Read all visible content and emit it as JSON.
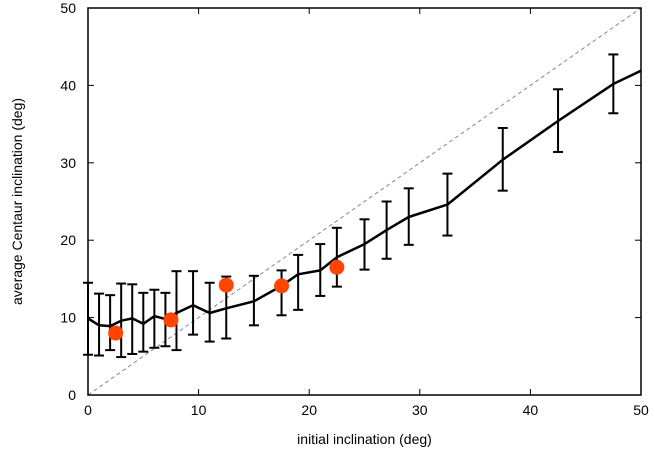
{
  "chart_data": {
    "type": "line",
    "xlabel": "initial inclination (deg)",
    "ylabel": "average Centaur inclination (deg)",
    "xlim": [
      0,
      50
    ],
    "ylim": [
      0,
      50
    ],
    "xticks": [
      "0",
      "10",
      "20",
      "30",
      "40",
      "50"
    ],
    "yticks": [
      "0",
      "10",
      "20",
      "30",
      "40",
      "50"
    ],
    "grid": false,
    "legend": "none",
    "series": [
      {
        "kind": "line-errorbars",
        "color": "#000000",
        "points": [
          {
            "x": 0,
            "y": 9.9,
            "ylo": 5.2,
            "yhi": 14.5
          },
          {
            "x": 1,
            "y": 9.0,
            "ylo": 5.1,
            "yhi": 13.1
          },
          {
            "x": 2,
            "y": 8.9,
            "ylo": 5.8,
            "yhi": 12.9
          },
          {
            "x": 3,
            "y": 9.6,
            "ylo": 4.9,
            "yhi": 14.4
          },
          {
            "x": 4,
            "y": 9.9,
            "ylo": 5.3,
            "yhi": 14.3
          },
          {
            "x": 5,
            "y": 9.2,
            "ylo": 5.6,
            "yhi": 13.2
          },
          {
            "x": 6,
            "y": 10.2,
            "ylo": 6.1,
            "yhi": 13.6
          },
          {
            "x": 7,
            "y": 9.8,
            "ylo": 6.3,
            "yhi": 13.2
          },
          {
            "x": 8,
            "y": 10.6,
            "ylo": 5.8,
            "yhi": 16.0
          },
          {
            "x": 9.5,
            "y": 11.6,
            "ylo": 7.8,
            "yhi": 16.0
          },
          {
            "x": 11,
            "y": 10.6,
            "ylo": 6.9,
            "yhi": 14.5
          },
          {
            "x": 12.5,
            "y": 11.2,
            "ylo": 7.3,
            "yhi": 15.3
          },
          {
            "x": 15,
            "y": 12.1,
            "ylo": 9.0,
            "yhi": 15.4
          },
          {
            "x": 17.5,
            "y": 14.1,
            "ylo": 10.3,
            "yhi": 16.1
          },
          {
            "x": 19,
            "y": 15.6,
            "ylo": 11.0,
            "yhi": 18.1
          },
          {
            "x": 21,
            "y": 16.1,
            "ylo": 12.8,
            "yhi": 19.5
          },
          {
            "x": 22.5,
            "y": 17.8,
            "ylo": 14.0,
            "yhi": 21.6
          },
          {
            "x": 25,
            "y": 19.5,
            "ylo": 16.2,
            "yhi": 22.7
          },
          {
            "x": 27,
            "y": 21.3,
            "ylo": 17.6,
            "yhi": 25.0
          },
          {
            "x": 29,
            "y": 23.0,
            "ylo": 19.4,
            "yhi": 26.7
          },
          {
            "x": 32.5,
            "y": 24.6,
            "ylo": 20.6,
            "yhi": 28.6
          },
          {
            "x": 37.5,
            "y": 30.4,
            "ylo": 26.4,
            "yhi": 34.5
          },
          {
            "x": 42.5,
            "y": 35.4,
            "ylo": 31.4,
            "yhi": 39.5
          },
          {
            "x": 47.5,
            "y": 40.2,
            "ylo": 36.4,
            "yhi": 44.0
          },
          {
            "x": 50,
            "y": 41.9
          }
        ]
      },
      {
        "kind": "scatter",
        "color": "#ff4500",
        "points": [
          {
            "x": 2.5,
            "y": 8.0
          },
          {
            "x": 7.5,
            "y": 9.7
          },
          {
            "x": 12.5,
            "y": 14.2
          },
          {
            "x": 17.5,
            "y": 14.1
          },
          {
            "x": 22.5,
            "y": 16.5
          }
        ]
      },
      {
        "kind": "reference-line",
        "style": "dashed",
        "color": "#888888",
        "points": [
          {
            "x": 0,
            "y": 0
          },
          {
            "x": 50,
            "y": 50
          }
        ]
      }
    ]
  }
}
